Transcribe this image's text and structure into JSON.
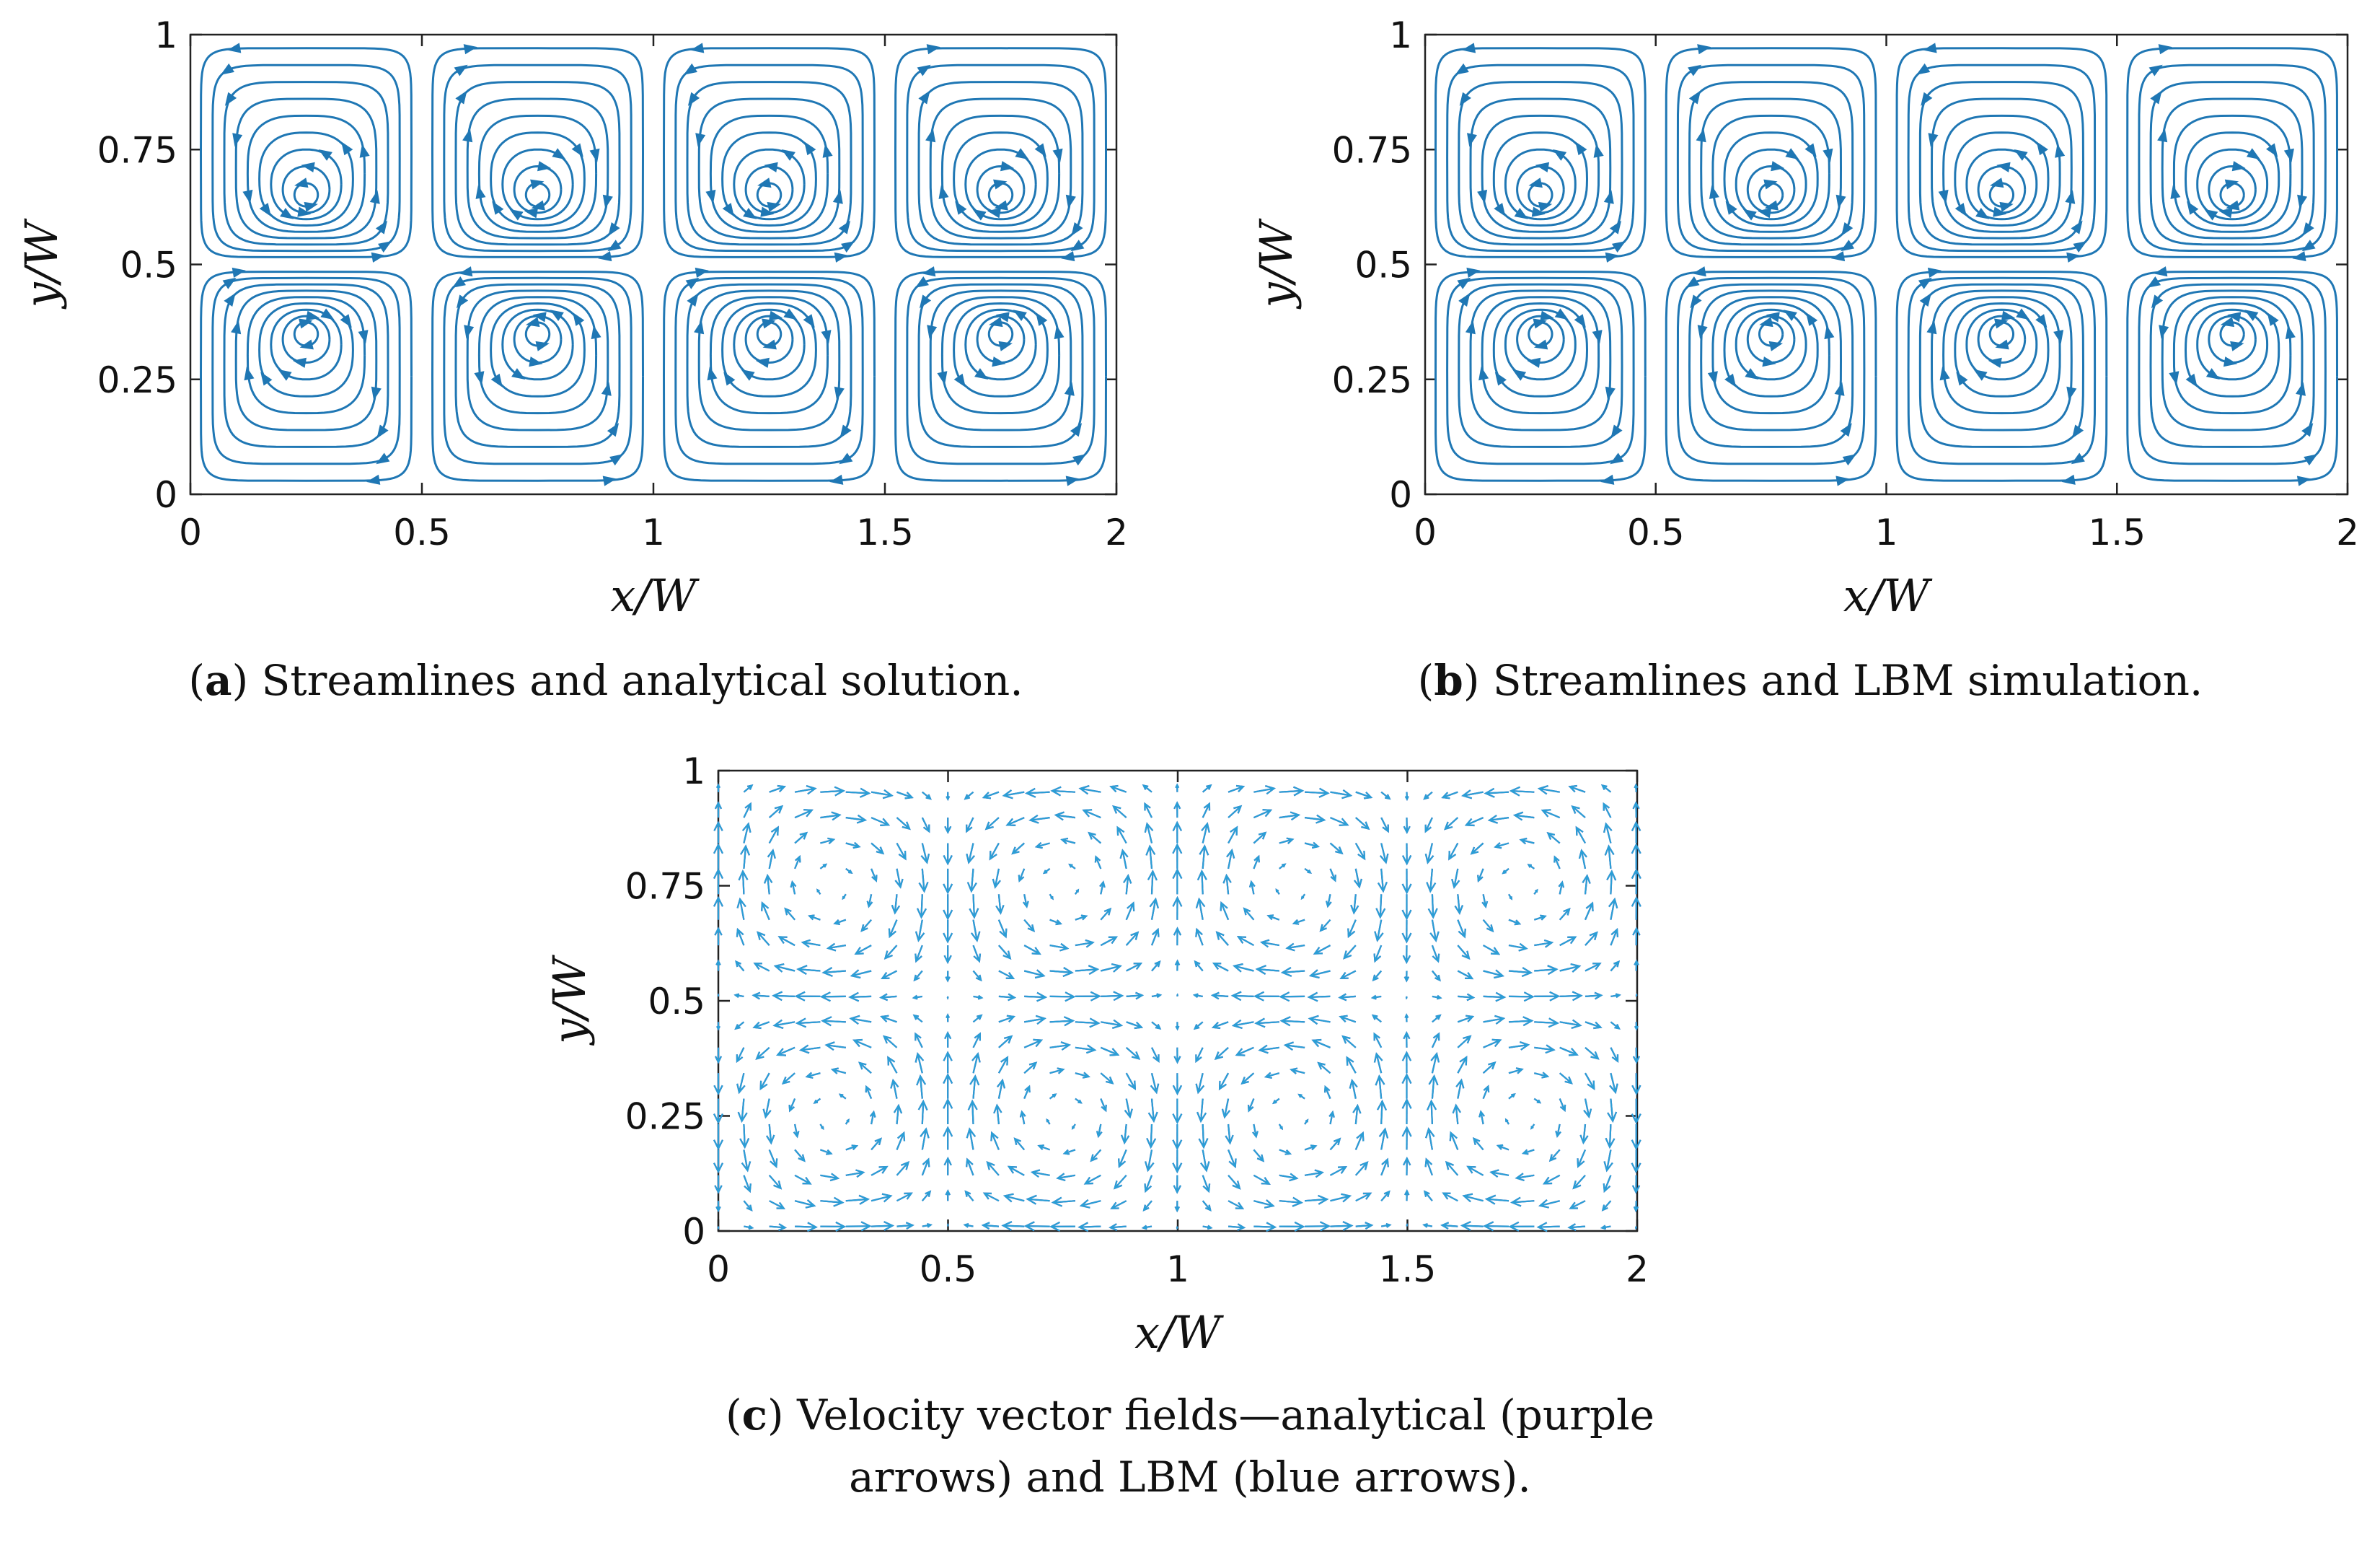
{
  "colors": {
    "stream": "#1f77b4",
    "analytical": "#7b2f9e",
    "lbm": "#2a9fd6",
    "axis": "#222222"
  },
  "chart_data": [
    {
      "id": "a",
      "type": "streamline",
      "xlabel": "x/W",
      "ylabel": "y/W",
      "xlim": [
        0,
        2
      ],
      "ylim": [
        0,
        1
      ],
      "xticks": [
        "0",
        "0.5",
        "1",
        "1.5",
        "2"
      ],
      "yticks": [
        "0",
        "0.25",
        "0.5",
        "0.75",
        "1"
      ],
      "cells_x": 4,
      "cells_y": 2,
      "vortex_centers": [
        [
          0.25,
          0.64
        ],
        [
          0.75,
          0.64
        ],
        [
          1.25,
          0.64
        ],
        [
          1.75,
          0.64
        ],
        [
          0.25,
          0.36
        ],
        [
          0.75,
          0.36
        ],
        [
          1.25,
          0.36
        ],
        [
          1.75,
          0.36
        ]
      ],
      "caption_label": "a",
      "caption_text": ") Streamlines and analytical solution."
    },
    {
      "id": "b",
      "type": "streamline",
      "xlabel": "x/W",
      "ylabel": "y/W",
      "xlim": [
        0,
        2
      ],
      "ylim": [
        0,
        1
      ],
      "xticks": [
        "0",
        "0.5",
        "1",
        "1.5",
        "2"
      ],
      "yticks": [
        "0",
        "0.25",
        "0.5",
        "0.75",
        "1"
      ],
      "cells_x": 4,
      "cells_y": 2,
      "vortex_centers": [
        [
          0.25,
          0.64
        ],
        [
          0.75,
          0.64
        ],
        [
          1.25,
          0.64
        ],
        [
          1.75,
          0.64
        ],
        [
          0.25,
          0.36
        ],
        [
          0.75,
          0.36
        ],
        [
          1.25,
          0.36
        ],
        [
          1.75,
          0.36
        ]
      ],
      "caption_label": "b",
      "caption_text": ") Streamlines and LBM simulation."
    },
    {
      "id": "c",
      "type": "quiver",
      "xlabel": "x/W",
      "ylabel": "y/W",
      "xlim": [
        0,
        2
      ],
      "ylim": [
        0,
        1
      ],
      "xticks": [
        "0",
        "0.5",
        "1",
        "1.5",
        "2"
      ],
      "yticks": [
        "0",
        "0.25",
        "0.5",
        "0.75",
        "1"
      ],
      "series": [
        {
          "name": "analytical"
        },
        {
          "name": "LBM"
        }
      ],
      "grid_step": 0.0555,
      "caption_label": "c",
      "caption_line1": ") Velocity vector fields—analytical (purple",
      "caption_line2": "arrows) and LBM (blue arrows)."
    }
  ]
}
